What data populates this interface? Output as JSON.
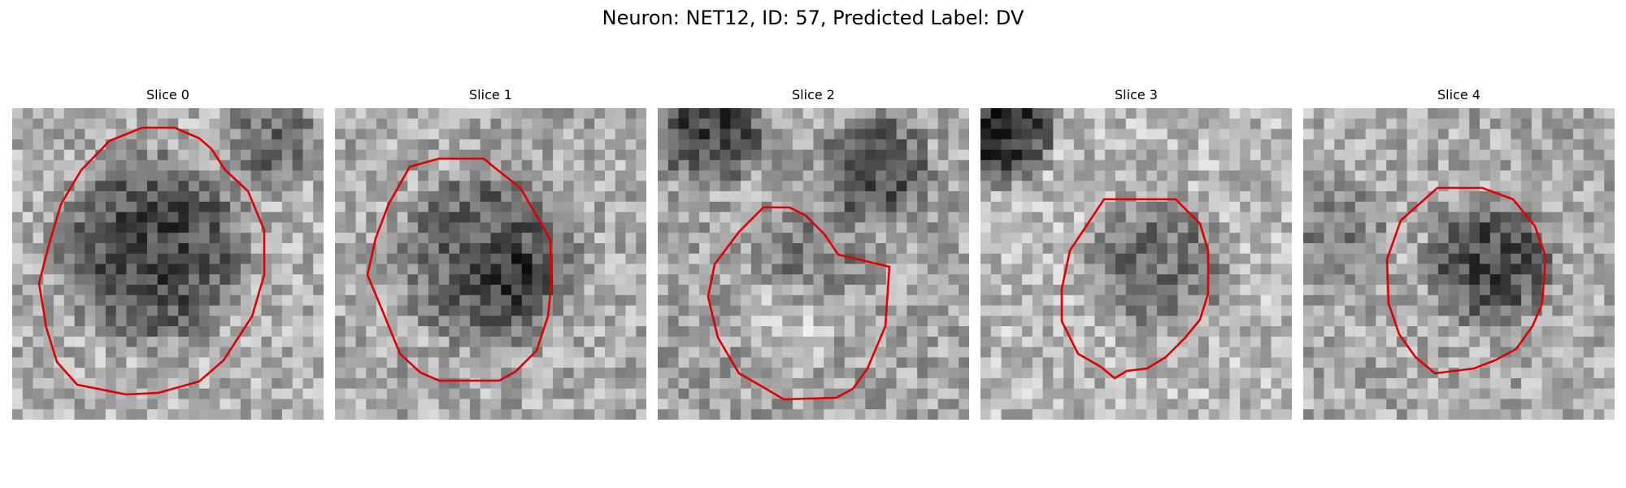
{
  "figure": {
    "title": "Neuron: NET12, ID: 57, Predicted Label: DV",
    "contour_color": "#e00000",
    "colormap": "grayscale",
    "grid_size": 30
  },
  "panels": [
    {
      "title": "Slice 0"
    },
    {
      "title": "Slice 1"
    },
    {
      "title": "Slice 2"
    },
    {
      "title": "Slice 3"
    },
    {
      "title": "Slice 4"
    }
  ]
}
